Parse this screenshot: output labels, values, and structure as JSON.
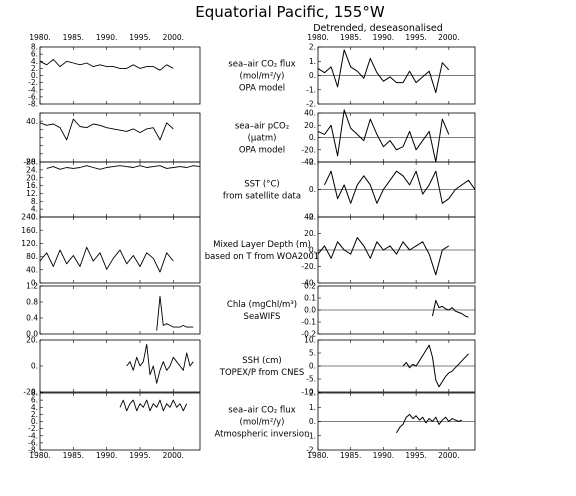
{
  "figure": {
    "title": "Equatorial Pacific, 155°W",
    "right_subtitle": "Detrended, deseasonalised"
  },
  "chart_data": [
    {
      "id": "co2flux_opa",
      "label_lines": [
        "sea–air CO₂ flux",
        "(mol/m²/y)",
        "OPA model"
      ],
      "left": {
        "type": "line",
        "ylim": [
          -8,
          8
        ],
        "yticks": [
          "8.",
          "6.",
          "4.",
          "2.",
          "0.",
          "-2.",
          "-4.",
          "-6.",
          "-8."
        ],
        "xlim": [
          1980,
          2004
        ],
        "xticks": [
          "1980.",
          "1985.",
          "1990.",
          "1995.",
          "2000."
        ],
        "series": [
          {
            "x_start": 1980,
            "x_end": 2000,
            "values": [
              4,
              3,
              4.5,
              2.5,
              4,
              3.5,
              3,
              3.5,
              2.5,
              3,
              2.5,
              2.5,
              2,
              2,
              3,
              2,
              2.5,
              2.5,
              1.5,
              3,
              2
            ]
          }
        ]
      },
      "right": {
        "type": "line",
        "ylim": [
          -2,
          2
        ],
        "yticks": [
          "2.",
          "1.",
          "0.",
          "-1.",
          "-2."
        ],
        "xlim": [
          1980,
          2004
        ],
        "xticks": [
          "1980.",
          "1985.",
          "1990.",
          "1995.",
          "2000."
        ],
        "series": [
          {
            "x_start": 1980,
            "x_end": 2000,
            "values": [
              0.5,
              0.2,
              0.6,
              -0.8,
              1.8,
              0.6,
              0.3,
              -0.2,
              1.2,
              0.2,
              -0.4,
              -0.1,
              -0.5,
              -0.5,
              0.3,
              -0.5,
              -0.1,
              0.3,
              -1.2,
              0.9,
              0.4
            ]
          }
        ]
      }
    },
    {
      "id": "pco2_opa",
      "label_lines": [
        "sea–air pCO₂",
        "(μatm)",
        "OPA model"
      ],
      "left": {
        "type": "line",
        "ylim": [
          -80,
          120
        ],
        "yticks": [
          "",
          "40.",
          "",
          "",
          "",
          "",
          "-80."
        ],
        "xlim": [
          1980,
          2004
        ],
        "xticks": [
          "1980.",
          "1985.",
          "1990.",
          "1995.",
          "2000."
        ],
        "series": [
          {
            "x_start": 1980,
            "x_end": 2000,
            "values": [
              80,
              70,
              75,
              60,
              10,
              95,
              65,
              60,
              75,
              70,
              60,
              55,
              50,
              45,
              55,
              40,
              55,
              60,
              10,
              80,
              55
            ]
          }
        ]
      },
      "right": {
        "type": "line",
        "ylim": [
          -40,
          40
        ],
        "yticks": [
          "40.",
          "20.",
          "0.",
          "-20.",
          "-40."
        ],
        "xlim": [
          1980,
          2004
        ],
        "xticks": [
          "1980.",
          "1985.",
          "1990.",
          "1995.",
          "2000."
        ],
        "series": [
          {
            "x_start": 1980,
            "x_end": 2000,
            "values": [
              10,
              5,
              20,
              -30,
              45,
              15,
              5,
              -5,
              30,
              5,
              -15,
              -5,
              -20,
              -15,
              10,
              -20,
              -5,
              10,
              -40,
              30,
              5
            ]
          }
        ]
      }
    },
    {
      "id": "sst",
      "label_lines": [
        "SST (°C)",
        "from satellite data"
      ],
      "left": {
        "type": "line",
        "ylim": [
          0,
          30
        ],
        "yticks": [
          "28.",
          "24.",
          "20.",
          "16.",
          "12.",
          "8.",
          "4.",
          "0."
        ],
        "xlim": [
          1980,
          2004
        ],
        "xticks": [
          "1980.",
          "1985.",
          "1990.",
          "1995.",
          "2000."
        ],
        "series": [
          {
            "x_start": 1981,
            "x_end": 2004,
            "values": [
              26.5,
              27.5,
              26,
              27,
              26.5,
              27,
              28,
              27,
              26,
              27,
              27.5,
              28,
              27.5,
              27,
              28,
              27,
              27.5,
              28,
              26.5,
              27,
              27.5,
              27,
              28,
              27.5
            ]
          }
        ]
      },
      "right": {
        "type": "line",
        "ylim": [
          -3,
          3
        ],
        "yticks": [
          "2.",
          "0.",
          "-2."
        ],
        "xlim": [
          1980,
          2004
        ],
        "xticks": [
          "1980.",
          "1985.",
          "1990.",
          "1995.",
          "2000."
        ],
        "series": [
          {
            "x_start": 1981,
            "x_end": 2004,
            "values": [
              0.5,
              2,
              -1,
              0.5,
              -1.5,
              0.5,
              1.5,
              0.5,
              -1.5,
              0,
              1,
              2,
              1.5,
              0.5,
              2,
              -0.5,
              0.5,
              2,
              -1.5,
              -1,
              0,
              0.5,
              1,
              0
            ]
          }
        ]
      }
    },
    {
      "id": "mld",
      "label_lines": [
        "Mixed Layer Depth (m)",
        "based on T from WOA2001"
      ],
      "left": {
        "type": "line",
        "ylim": [
          0,
          240
        ],
        "yticks": [
          "240.",
          "160.",
          "120.",
          "80.",
          "40.",
          "0."
        ],
        "xlim": [
          1980,
          2004
        ],
        "xticks": [
          "1980.",
          "1985.",
          "1990.",
          "1995.",
          "2000."
        ],
        "series": [
          {
            "x_start": 1980,
            "x_end": 2000,
            "values": [
              80,
              110,
              60,
              120,
              70,
              100,
              60,
              130,
              80,
              110,
              50,
              90,
              120,
              70,
              100,
              60,
              110,
              90,
              40,
              110,
              80
            ]
          }
        ]
      },
      "right": {
        "type": "line",
        "ylim": [
          -40,
          40
        ],
        "yticks": [
          "40.",
          "20.",
          "0.",
          "-20.",
          "-40."
        ],
        "xlim": [
          1980,
          2004
        ],
        "xticks": [
          "1980.",
          "1985.",
          "1990.",
          "1995.",
          "2000."
        ],
        "series": [
          {
            "x_start": 1980,
            "x_end": 2000,
            "values": [
              -5,
              5,
              -10,
              10,
              0,
              -5,
              15,
              5,
              -10,
              10,
              0,
              5,
              -5,
              10,
              0,
              5,
              10,
              -5,
              -30,
              0,
              5
            ]
          }
        ]
      }
    },
    {
      "id": "chla",
      "label_lines": [
        "Chla (mgChl/m³)",
        "SeaWIFS"
      ],
      "left": {
        "type": "line",
        "ylim": [
          0,
          1.4
        ],
        "yticks": [
          "1.2",
          "0.8",
          "0.4",
          "0.0"
        ],
        "xlim": [
          1980,
          2004
        ],
        "xticks": [
          "1980.",
          "1985.",
          "1990.",
          "1995.",
          "2000."
        ],
        "series": [
          {
            "x_start": 1997.5,
            "x_end": 2003,
            "values": [
              0.1,
              1.1,
              0.25,
              0.3,
              0.25,
              0.2,
              0.2,
              0.2,
              0.25,
              0.2,
              0.2,
              0.2
            ]
          }
        ]
      },
      "right": {
        "type": "line",
        "ylim": [
          -0.2,
          0.2
        ],
        "yticks": [
          "0.2",
          "0.1",
          "0.0",
          "-0.1",
          "-0.2"
        ],
        "xlim": [
          1980,
          2004
        ],
        "xticks": [
          "1980.",
          "1985.",
          "1990.",
          "1995.",
          "2000."
        ],
        "series": [
          {
            "x_start": 1997.5,
            "x_end": 2003,
            "values": [
              -0.05,
              0.08,
              0.02,
              0.03,
              0.01,
              0.0,
              0.02,
              -0.01,
              -0.02,
              -0.03,
              -0.05,
              -0.06
            ]
          }
        ]
      }
    },
    {
      "id": "ssh",
      "label_lines": [
        "SSH (cm)",
        "TOPEX/P from CNES"
      ],
      "left": {
        "type": "line",
        "ylim": [
          -30,
          30
        ],
        "yticks": [
          "20.",
          "0.",
          "-20."
        ],
        "xlim": [
          1980,
          2004
        ],
        "xticks": [
          "1980.",
          "1985.",
          "1990.",
          "1995.",
          "2000."
        ],
        "series": [
          {
            "x_start": 1993,
            "x_end": 2003,
            "values": [
              0,
              5,
              -5,
              10,
              0,
              5,
              25,
              -10,
              0,
              -20,
              -5,
              5,
              -5,
              0,
              10,
              5,
              0,
              -5,
              15,
              0,
              5
            ]
          }
        ]
      },
      "right": {
        "type": "line",
        "ylim": [
          -15,
          15
        ],
        "yticks": [
          "10.",
          "5.",
          "0.",
          "-5.",
          "-10."
        ],
        "xlim": [
          1980,
          2004
        ],
        "xticks": [
          "1980.",
          "1985.",
          "1990.",
          "1995.",
          "2000."
        ],
        "series": [
          {
            "x_start": 1993,
            "x_end": 2003,
            "values": [
              0,
              2,
              -1,
              1,
              0,
              3,
              6,
              9,
              12,
              5,
              -8,
              -12,
              -9,
              -6,
              -4,
              -3,
              -1,
              1,
              3,
              5,
              7
            ]
          }
        ]
      }
    },
    {
      "id": "co2flux_inversion",
      "label_lines": [
        "sea–air CO₂ flux",
        "(mol/m²/y)",
        "Atmospheric inversion"
      ],
      "left": {
        "type": "line",
        "ylim": [
          -8,
          8
        ],
        "yticks": [
          "8.",
          "6.",
          "4.",
          "2.",
          "0.",
          "-2.",
          "-4.",
          "-6.",
          "-8."
        ],
        "xlim": [
          1980,
          2004
        ],
        "xticks": [
          "1980.",
          "1985.",
          "1990.",
          "1995.",
          "2000."
        ],
        "series": [
          {
            "x_start": 1992,
            "x_end": 2002,
            "values": [
              4,
              6,
              3,
              5,
              6,
              3,
              5,
              4,
              6,
              3,
              5,
              4,
              6,
              3,
              5,
              4,
              6,
              4,
              5,
              3,
              5
            ]
          }
        ]
      },
      "right": {
        "type": "line",
        "ylim": [
          -2,
          2
        ],
        "yticks": [
          "2.",
          "1.",
          "0.",
          "-1.",
          "-2."
        ],
        "xlim": [
          1980,
          2004
        ],
        "xticks": [
          "1980.",
          "1985.",
          "1990.",
          "1995.",
          "2000."
        ],
        "series": [
          {
            "x_start": 1992,
            "x_end": 2002,
            "values": [
              -0.8,
              -0.4,
              -0.2,
              0.3,
              0.5,
              0.2,
              0.4,
              0.1,
              0.3,
              -0.1,
              0.2,
              0,
              0.3,
              -0.2,
              0.1,
              0.3,
              0,
              0.2,
              0.1,
              0,
              0.1
            ]
          }
        ]
      }
    }
  ]
}
